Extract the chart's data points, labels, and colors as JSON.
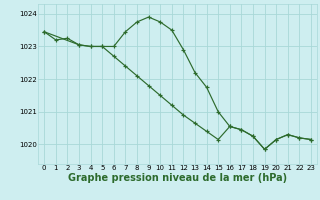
{
  "background_color": "#ceeef0",
  "grid_color": "#a8d8d8",
  "line_color": "#2d6b2d",
  "xlabel": "Graphe pression niveau de la mer (hPa)",
  "xlabel_fontsize": 7.0,
  "ylim": [
    1019.4,
    1024.3
  ],
  "yticks": [
    1020,
    1021,
    1022,
    1023,
    1024
  ],
  "xticks": [
    0,
    1,
    2,
    3,
    4,
    5,
    6,
    7,
    8,
    9,
    10,
    11,
    12,
    13,
    14,
    15,
    16,
    17,
    18,
    19,
    20,
    21,
    22,
    23
  ],
  "line1_x": [
    0,
    1,
    2,
    3,
    4,
    5,
    6,
    7,
    8,
    9,
    10,
    11,
    12,
    13,
    14,
    15,
    16,
    17,
    18,
    19,
    20,
    21,
    22,
    23
  ],
  "line1_y": [
    1023.45,
    1023.2,
    1023.25,
    1023.05,
    1023.0,
    1023.0,
    1023.0,
    1023.45,
    1023.75,
    1023.9,
    1023.75,
    1023.5,
    1022.9,
    1022.2,
    1021.75,
    1021.0,
    1020.55,
    1020.45,
    1020.25,
    1019.85,
    1020.15,
    1020.3,
    1020.2,
    1020.15
  ],
  "line2_x": [
    0,
    3,
    4,
    5,
    6,
    7,
    8,
    9,
    10,
    11,
    12,
    13,
    14,
    15,
    16,
    17,
    18,
    19,
    20,
    21,
    22,
    23
  ],
  "line2_y": [
    1023.45,
    1023.05,
    1023.0,
    1023.0,
    1022.7,
    1022.4,
    1022.1,
    1021.8,
    1021.5,
    1021.2,
    1020.9,
    1020.65,
    1020.4,
    1020.15,
    1020.55,
    1020.45,
    1020.25,
    1019.85,
    1020.15,
    1020.3,
    1020.2,
    1020.15
  ]
}
